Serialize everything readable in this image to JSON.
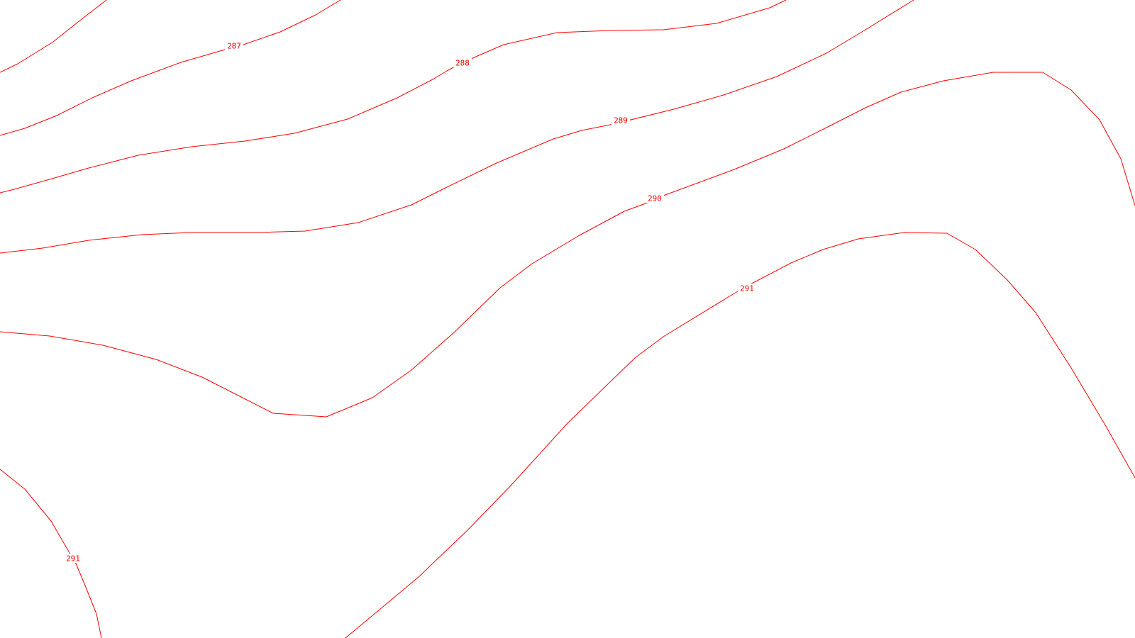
{
  "map": {
    "type": "contour-map",
    "line_color": "#ff0000",
    "background_color": "#ffffff",
    "contour_labels": [
      "287",
      "288",
      "289",
      "290",
      "291",
      "291"
    ]
  }
}
